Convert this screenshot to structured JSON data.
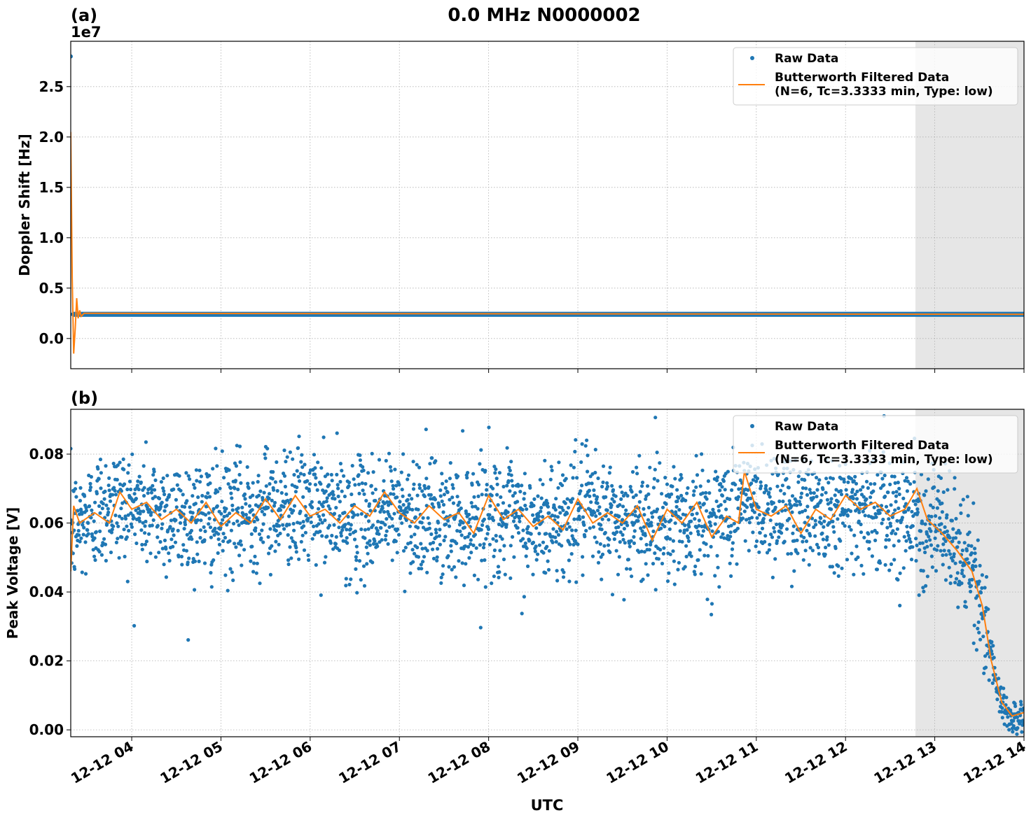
{
  "title": "0.0 MHz N0000002",
  "xlabel": "UTC",
  "colors": {
    "raw": "#1f77b4",
    "filtered": "#ff7f0e",
    "shade": "#e6e6e6",
    "grid": "#b0b0b0"
  },
  "legend": {
    "raw": "Raw Data",
    "filtered_line1": "Butterworth Filtered Data",
    "filtered_line2": "(N=6, Tc=3.3333 min, Type: low)"
  },
  "chart_data": [
    {
      "panel_label": "(a)",
      "type": "scatter",
      "ylabel": "Doppler Shift [Hz]",
      "offset_text": "1e7",
      "xlim": [
        "2024-12-12T03:19",
        "2024-12-12T14:00"
      ],
      "ylim": [
        -0.3,
        2.95
      ],
      "yticks": [
        0.0,
        0.5,
        1.0,
        1.5,
        2.0,
        2.5
      ],
      "ytick_labels": [
        "0.0",
        "0.5",
        "1.0",
        "1.5",
        "2.0",
        "2.5"
      ],
      "shaded_region": [
        "2024-12-12T12:47",
        "2024-12-12T14:00"
      ],
      "legend_position": "upper right",
      "series": [
        {
          "name": "Raw Data",
          "kind": "scatter",
          "description": "constant near 0.24e7 Hz with single outlier 2.8e7 at start",
          "points": [
            [
              "03:19",
              2.8
            ],
            [
              "03:20",
              0.24
            ],
            [
              "14:00",
              0.24
            ]
          ]
        },
        {
          "name": "Butterworth Filtered Data",
          "kind": "line",
          "points": [
            [
              "03:19",
              2.05
            ],
            [
              "03:20",
              0.6
            ],
            [
              "03:21",
              -0.15
            ],
            [
              "03:22",
              0.1
            ],
            [
              "03:23",
              0.4
            ],
            [
              "03:24",
              0.2
            ],
            [
              "03:25",
              0.28
            ],
            [
              "03:26",
              0.22
            ],
            [
              "03:28",
              0.25
            ],
            [
              "14:00",
              0.24
            ]
          ]
        }
      ]
    },
    {
      "panel_label": "(b)",
      "type": "scatter",
      "ylabel": "Peak Voltage [V]",
      "xlim": [
        "2024-12-12T03:19",
        "2024-12-12T14:00"
      ],
      "ylim": [
        -0.002,
        0.093
      ],
      "yticks": [
        0.0,
        0.02,
        0.04,
        0.06,
        0.08
      ],
      "ytick_labels": [
        "0.00",
        "0.02",
        "0.04",
        "0.06",
        "0.08"
      ],
      "shaded_region": [
        "2024-12-12T12:47",
        "2024-12-12T14:00"
      ],
      "legend_position": "upper right",
      "series": [
        {
          "name": "Raw Data",
          "kind": "scatter",
          "description": "dense noisy samples, mean ~0.063 V, spread ~0.045-0.08 V, dropping to ~0.004 V after 13:35",
          "points": [
            [
              "03:20",
              0.058
            ],
            [
              "03:45",
              0.066
            ],
            [
              "04:30",
              0.062
            ],
            [
              "05:00",
              0.061
            ],
            [
              "05:45",
              0.066
            ],
            [
              "06:30",
              0.061
            ],
            [
              "07:00",
              0.064
            ],
            [
              "07:30",
              0.06
            ],
            [
              "08:00",
              0.063
            ],
            [
              "08:30",
              0.058
            ],
            [
              "09:00",
              0.064
            ],
            [
              "09:30",
              0.06
            ],
            [
              "10:00",
              0.062
            ],
            [
              "10:30",
              0.06
            ],
            [
              "10:50",
              0.066
            ],
            [
              "11:30",
              0.064
            ],
            [
              "12:00",
              0.065
            ],
            [
              "12:45",
              0.063
            ],
            [
              "13:10",
              0.056
            ],
            [
              "13:25",
              0.046
            ],
            [
              "13:35",
              0.03
            ],
            [
              "13:42",
              0.01
            ],
            [
              "13:50",
              0.004
            ],
            [
              "14:00",
              0.004
            ]
          ]
        },
        {
          "name": "Butterworth Filtered Data",
          "kind": "line",
          "points": [
            [
              "03:19",
              0.046
            ],
            [
              "03:21",
              0.065
            ],
            [
              "03:25",
              0.06
            ],
            [
              "03:35",
              0.063
            ],
            [
              "03:45",
              0.06
            ],
            [
              "03:52",
              0.069
            ],
            [
              "04:00",
              0.064
            ],
            [
              "04:10",
              0.066
            ],
            [
              "04:20",
              0.061
            ],
            [
              "04:30",
              0.064
            ],
            [
              "04:40",
              0.06
            ],
            [
              "04:50",
              0.066
            ],
            [
              "05:00",
              0.059
            ],
            [
              "05:10",
              0.063
            ],
            [
              "05:20",
              0.06
            ],
            [
              "05:30",
              0.067
            ],
            [
              "05:40",
              0.061
            ],
            [
              "05:50",
              0.068
            ],
            [
              "06:00",
              0.062
            ],
            [
              "06:10",
              0.064
            ],
            [
              "06:20",
              0.06
            ],
            [
              "06:30",
              0.065
            ],
            [
              "06:40",
              0.062
            ],
            [
              "06:50",
              0.069
            ],
            [
              "07:00",
              0.063
            ],
            [
              "07:10",
              0.06
            ],
            [
              "07:20",
              0.065
            ],
            [
              "07:30",
              0.061
            ],
            [
              "07:40",
              0.063
            ],
            [
              "07:50",
              0.057
            ],
            [
              "08:00",
              0.068
            ],
            [
              "08:10",
              0.061
            ],
            [
              "08:20",
              0.064
            ],
            [
              "08:30",
              0.059
            ],
            [
              "08:40",
              0.062
            ],
            [
              "08:50",
              0.058
            ],
            [
              "09:00",
              0.067
            ],
            [
              "09:10",
              0.06
            ],
            [
              "09:20",
              0.063
            ],
            [
              "09:30",
              0.06
            ],
            [
              "09:40",
              0.065
            ],
            [
              "09:50",
              0.055
            ],
            [
              "10:00",
              0.064
            ],
            [
              "10:10",
              0.06
            ],
            [
              "10:20",
              0.066
            ],
            [
              "10:30",
              0.056
            ],
            [
              "10:40",
              0.062
            ],
            [
              "10:48",
              0.06
            ],
            [
              "10:52",
              0.075
            ],
            [
              "11:00",
              0.064
            ],
            [
              "11:10",
              0.062
            ],
            [
              "11:20",
              0.065
            ],
            [
              "11:30",
              0.057
            ],
            [
              "11:40",
              0.064
            ],
            [
              "11:50",
              0.061
            ],
            [
              "12:00",
              0.068
            ],
            [
              "12:10",
              0.064
            ],
            [
              "12:20",
              0.066
            ],
            [
              "12:30",
              0.062
            ],
            [
              "12:40",
              0.064
            ],
            [
              "12:48",
              0.07
            ],
            [
              "12:55",
              0.061
            ],
            [
              "13:05",
              0.057
            ],
            [
              "13:15",
              0.052
            ],
            [
              "13:25",
              0.046
            ],
            [
              "13:32",
              0.036
            ],
            [
              "13:38",
              0.02
            ],
            [
              "13:45",
              0.008
            ],
            [
              "13:52",
              0.004
            ],
            [
              "14:00",
              0.005
            ]
          ]
        }
      ]
    }
  ],
  "xtick_labels": [
    "12-12 04",
    "12-12 05",
    "12-12 06",
    "12-12 07",
    "12-12 08",
    "12-12 09",
    "12-12 10",
    "12-12 11",
    "12-12 12",
    "12-12 13",
    "12-12 14"
  ]
}
